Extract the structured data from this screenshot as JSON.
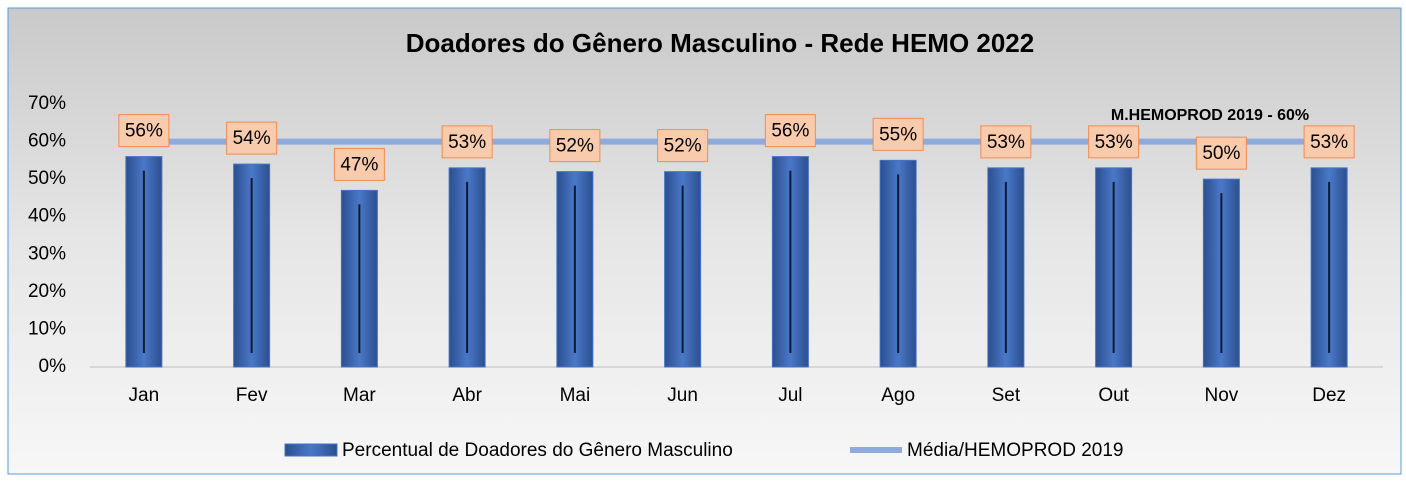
{
  "chart_data": {
    "type": "bar",
    "title": "Doadores do Gênero Masculino - Rede HEMO 2022",
    "annotation": "M.HEMOPROD  2019 - 60%",
    "categories": [
      "Jan",
      "Fev",
      "Mar",
      "Abr",
      "Mai",
      "Jun",
      "Jul",
      "Ago",
      "Set",
      "Out",
      "Nov",
      "Dez"
    ],
    "series": [
      {
        "name": "Percentual de Doadores do Gênero Masculino",
        "type": "bar",
        "color": "#4472c4",
        "values": [
          56,
          54,
          47,
          53,
          52,
          52,
          56,
          55,
          53,
          53,
          50,
          53
        ],
        "value_labels": [
          "56%",
          "54%",
          "47%",
          "53%",
          "52%",
          "52%",
          "56%",
          "55%",
          "53%",
          "53%",
          "50%",
          "53%"
        ]
      },
      {
        "name": "Média/HEMOPROD 2019",
        "type": "line",
        "color": "#8faadc",
        "values": [
          60,
          60,
          60,
          60,
          60,
          60,
          60,
          60,
          60,
          60,
          60,
          60
        ]
      }
    ],
    "ylim": [
      0,
      70
    ],
    "yticks": [
      {
        "value": 0,
        "label": "0%"
      },
      {
        "value": 10,
        "label": "10%"
      },
      {
        "value": 20,
        "label": "20%"
      },
      {
        "value": 30,
        "label": "30%"
      },
      {
        "value": 40,
        "label": "40%"
      },
      {
        "value": 50,
        "label": "50%"
      },
      {
        "value": 60,
        "label": "60%"
      },
      {
        "value": 70,
        "label": "70%"
      }
    ],
    "grid": false,
    "legend": "bottom"
  }
}
